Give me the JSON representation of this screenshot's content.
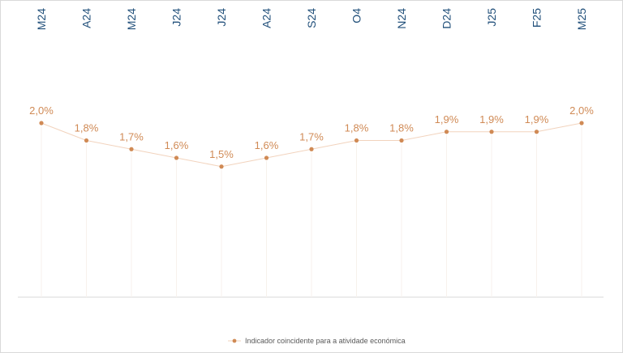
{
  "chart_data": {
    "type": "line",
    "categories": [
      "M24",
      "A24",
      "M24",
      "J24",
      "J24",
      "A24",
      "S24",
      "O4",
      "N24",
      "D24",
      "J25",
      "F25",
      "M25"
    ],
    "series": [
      {
        "name": "Indicador coincidente para a atividade económica",
        "values": [
          2.0,
          1.8,
          1.7,
          1.6,
          1.5,
          1.6,
          1.7,
          1.8,
          1.8,
          1.9,
          1.9,
          1.9,
          2.0
        ],
        "labels": [
          "2,0%",
          "1,8%",
          "1,7%",
          "1,6%",
          "1,5%",
          "1,6%",
          "1,7%",
          "1,8%",
          "1,8%",
          "1,9%",
          "1,9%",
          "1,9%",
          "2,0%"
        ],
        "color": "#d08a55"
      }
    ],
    "title": "",
    "xlabel": "",
    "ylabel": "",
    "ylim": [
      0,
      2.0
    ],
    "grid": false,
    "legend": "bottom-center",
    "x_axis_position": "top",
    "baseline_color": "#d9d9d9",
    "tick_label_color": "#1f4e79"
  }
}
